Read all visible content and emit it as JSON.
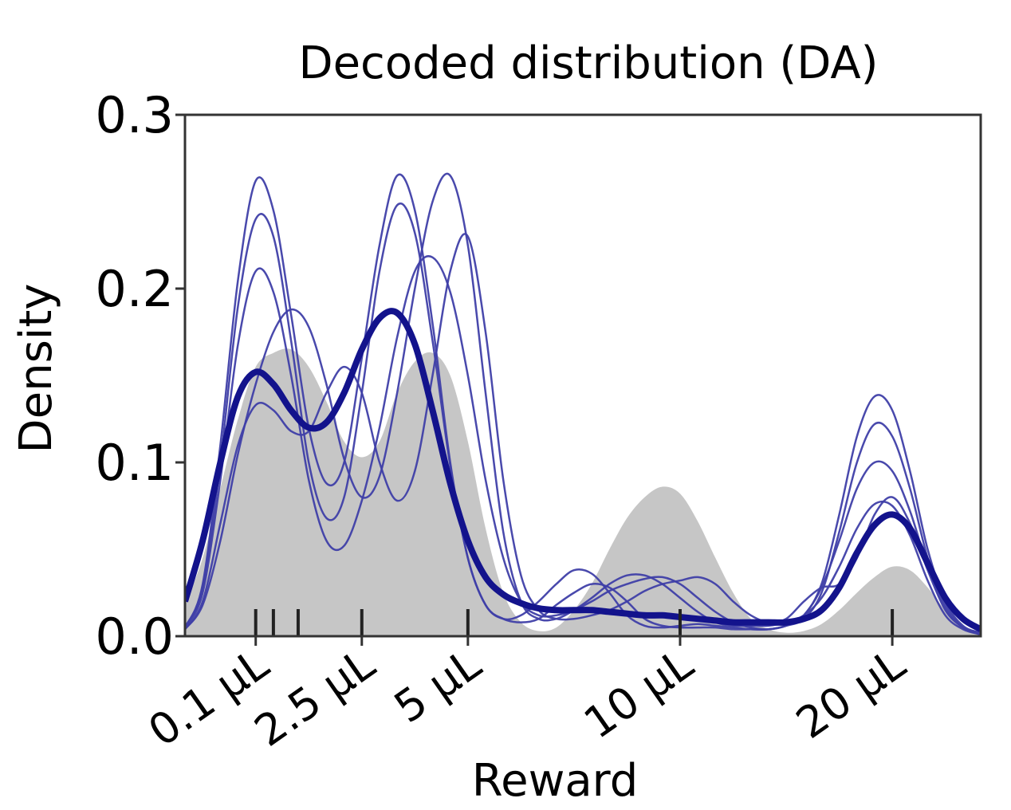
{
  "chart_data": {
    "type": "area",
    "title": "Decoded distribution (DA)",
    "xlabel": "Reward",
    "ylabel": "Density",
    "xlim": [
      -0.5,
      22.0
    ],
    "ylim": [
      0.0,
      0.3
    ],
    "yticks": [
      0.0,
      0.1,
      0.2,
      0.3
    ],
    "ytick_labels": [
      "0.0",
      "0.1",
      "0.2",
      "0.3"
    ],
    "xticks": [
      1.5,
      4.5,
      7.5,
      13.5,
      19.5
    ],
    "xtick_labels": [
      "0.1 μL",
      "2.5 μL",
      "5 μL",
      "10 μL",
      "20 μL"
    ],
    "reward_rug_x": [
      1.5,
      2.0,
      2.7,
      4.5,
      7.5,
      13.5,
      19.5
    ],
    "grid": false,
    "colors": {
      "ground_truth_fill": "#c6c6c6",
      "sample_lines": "#3f3fa8",
      "mean_line": "#13138c",
      "axes": "#333333",
      "rug": "#222222"
    },
    "ground_truth_area": {
      "x": [
        -0.5,
        0.0,
        0.5,
        1.0,
        1.5,
        2.0,
        2.5,
        3.0,
        3.5,
        4.0,
        4.5,
        5.0,
        5.5,
        6.0,
        6.5,
        7.0,
        7.5,
        8.0,
        8.5,
        9.0,
        9.5,
        10.0,
        10.5,
        11.0,
        11.5,
        12.0,
        12.5,
        13.0,
        13.5,
        14.0,
        14.5,
        15.0,
        15.5,
        16.0,
        16.5,
        17.0,
        17.5,
        18.0,
        18.5,
        19.0,
        19.5,
        20.0,
        20.5,
        21.0,
        21.5,
        22.0
      ],
      "y": [
        0.018,
        0.045,
        0.085,
        0.125,
        0.155,
        0.163,
        0.165,
        0.155,
        0.135,
        0.112,
        0.103,
        0.112,
        0.14,
        0.158,
        0.163,
        0.15,
        0.112,
        0.062,
        0.025,
        0.008,
        0.003,
        0.005,
        0.015,
        0.03,
        0.05,
        0.068,
        0.08,
        0.086,
        0.082,
        0.066,
        0.045,
        0.025,
        0.01,
        0.004,
        0.002,
        0.003,
        0.007,
        0.015,
        0.025,
        0.034,
        0.04,
        0.038,
        0.028,
        0.015,
        0.006,
        0.002
      ]
    },
    "series": [
      {
        "x": [
          -0.5,
          0.0,
          0.5,
          1.0,
          1.5,
          2.0,
          2.5,
          3.0,
          3.5,
          4.0,
          4.5,
          5.0,
          5.5,
          6.0,
          6.5,
          7.0,
          7.5,
          8.0,
          8.5,
          9.0,
          9.5,
          10.0,
          10.5,
          11.0,
          11.5,
          12.0,
          12.5,
          13.0,
          13.5,
          14.0,
          14.5,
          15.0,
          15.5,
          16.0,
          16.5,
          17.0,
          17.5,
          18.0,
          18.5,
          19.0,
          19.5,
          20.0,
          20.5,
          21.0,
          21.5,
          22.0
        ],
        "y": [
          0.005,
          0.03,
          0.11,
          0.205,
          0.262,
          0.245,
          0.185,
          0.12,
          0.088,
          0.1,
          0.16,
          0.225,
          0.265,
          0.245,
          0.18,
          0.1,
          0.045,
          0.018,
          0.01,
          0.012,
          0.02,
          0.03,
          0.038,
          0.036,
          0.025,
          0.012,
          0.006,
          0.005,
          0.006,
          0.007,
          0.006,
          0.005,
          0.004,
          0.004,
          0.006,
          0.012,
          0.03,
          0.07,
          0.115,
          0.138,
          0.13,
          0.095,
          0.05,
          0.02,
          0.006,
          0.002
        ]
      },
      {
        "x": [
          -0.5,
          0.0,
          0.5,
          1.0,
          1.5,
          2.0,
          2.5,
          3.0,
          3.5,
          4.0,
          4.5,
          5.0,
          5.5,
          6.0,
          6.5,
          7.0,
          7.5,
          8.0,
          8.5,
          9.0,
          9.5,
          10.0,
          10.5,
          11.0,
          11.5,
          12.0,
          12.5,
          13.0,
          13.5,
          14.0,
          14.5,
          15.0,
          15.5,
          16.0,
          16.5,
          17.0,
          17.5,
          18.0,
          18.5,
          19.0,
          19.5,
          20.0,
          20.5,
          21.0,
          21.5,
          22.0
        ],
        "y": [
          0.005,
          0.028,
          0.1,
          0.19,
          0.24,
          0.23,
          0.17,
          0.1,
          0.068,
          0.08,
          0.14,
          0.21,
          0.248,
          0.232,
          0.17,
          0.098,
          0.045,
          0.018,
          0.01,
          0.008,
          0.01,
          0.018,
          0.025,
          0.03,
          0.028,
          0.02,
          0.01,
          0.006,
          0.005,
          0.005,
          0.005,
          0.004,
          0.004,
          0.004,
          0.006,
          0.01,
          0.025,
          0.06,
          0.1,
          0.122,
          0.115,
          0.085,
          0.045,
          0.018,
          0.005,
          0.002
        ]
      },
      {
        "x": [
          -0.5,
          0.0,
          0.5,
          1.0,
          1.5,
          2.0,
          2.5,
          3.0,
          3.5,
          4.0,
          4.5,
          5.0,
          5.5,
          6.0,
          6.5,
          7.0,
          7.5,
          8.0,
          8.5,
          9.0,
          9.5,
          10.0,
          10.5,
          11.0,
          11.5,
          12.0,
          12.5,
          13.0,
          13.5,
          14.0,
          14.5,
          15.0,
          15.5,
          16.0,
          16.5,
          17.0,
          17.5,
          18.0,
          18.5,
          19.0,
          19.5,
          20.0,
          20.5,
          21.0,
          21.5,
          22.0
        ],
        "y": [
          0.005,
          0.025,
          0.09,
          0.168,
          0.21,
          0.198,
          0.15,
          0.09,
          0.055,
          0.052,
          0.078,
          0.12,
          0.172,
          0.21,
          0.218,
          0.198,
          0.15,
          0.09,
          0.045,
          0.02,
          0.012,
          0.012,
          0.015,
          0.02,
          0.026,
          0.03,
          0.033,
          0.034,
          0.03,
          0.022,
          0.014,
          0.008,
          0.005,
          0.004,
          0.006,
          0.012,
          0.028,
          0.055,
          0.085,
          0.1,
          0.095,
          0.072,
          0.04,
          0.016,
          0.005,
          0.002
        ]
      },
      {
        "x": [
          -0.5,
          0.0,
          0.5,
          1.0,
          1.5,
          2.0,
          2.5,
          3.0,
          3.5,
          4.0,
          4.5,
          5.0,
          5.5,
          6.0,
          6.5,
          7.0,
          7.5,
          8.0,
          8.5,
          9.0,
          9.5,
          10.0,
          10.5,
          11.0,
          11.5,
          12.0,
          12.5,
          13.0,
          13.5,
          14.0,
          14.5,
          15.0,
          15.5,
          16.0,
          16.5,
          17.0,
          17.5,
          18.0,
          18.5,
          19.0,
          19.5,
          20.0,
          20.5,
          21.0,
          21.5,
          22.0
        ],
        "y": [
          0.004,
          0.018,
          0.055,
          0.105,
          0.145,
          0.175,
          0.188,
          0.178,
          0.145,
          0.102,
          0.08,
          0.092,
          0.14,
          0.2,
          0.25,
          0.265,
          0.225,
          0.14,
          0.06,
          0.02,
          0.01,
          0.01,
          0.015,
          0.022,
          0.03,
          0.035,
          0.035,
          0.03,
          0.022,
          0.014,
          0.008,
          0.006,
          0.006,
          0.006,
          0.008,
          0.012,
          0.022,
          0.04,
          0.062,
          0.076,
          0.075,
          0.058,
          0.032,
          0.012,
          0.004,
          0.001
        ]
      },
      {
        "x": [
          -0.5,
          0.0,
          0.5,
          1.0,
          1.5,
          2.0,
          2.5,
          3.0,
          3.5,
          4.0,
          4.5,
          5.0,
          5.5,
          6.0,
          6.5,
          7.0,
          7.5,
          8.0,
          8.5,
          9.0,
          9.5,
          10.0,
          10.5,
          11.0,
          11.5,
          12.0,
          12.5,
          13.0,
          13.5,
          14.0,
          14.5,
          15.0,
          15.5,
          16.0,
          16.5,
          17.0,
          17.5,
          18.0,
          18.5,
          19.0,
          19.5,
          20.0,
          20.5,
          21.0,
          21.5,
          22.0
        ],
        "y": [
          0.004,
          0.02,
          0.065,
          0.11,
          0.133,
          0.13,
          0.118,
          0.118,
          0.14,
          0.155,
          0.14,
          0.1,
          0.078,
          0.095,
          0.15,
          0.21,
          0.23,
          0.175,
          0.09,
          0.035,
          0.015,
          0.01,
          0.01,
          0.012,
          0.015,
          0.02,
          0.026,
          0.03,
          0.032,
          0.034,
          0.03,
          0.02,
          0.012,
          0.008,
          0.01,
          0.02,
          0.028,
          0.03,
          0.045,
          0.07,
          0.08,
          0.065,
          0.038,
          0.015,
          0.005,
          0.001
        ]
      },
      {
        "x": [
          -0.5,
          0.0,
          0.5,
          1.0,
          1.5,
          2.0,
          2.5,
          3.0,
          3.5,
          4.0,
          4.5,
          5.0,
          5.5,
          6.0,
          6.5,
          7.0,
          7.5,
          8.0,
          8.5,
          9.0,
          9.5,
          10.0,
          10.5,
          11.0,
          11.5,
          12.0,
          12.5,
          13.0,
          13.5,
          14.0,
          14.5,
          15.0,
          15.5,
          16.0,
          16.5,
          17.0,
          17.5,
          18.0,
          18.5,
          19.0,
          19.5,
          20.0,
          20.5,
          21.0,
          21.5,
          22.0
        ],
        "y": [
          0.02,
          0.055,
          0.1,
          0.138,
          0.152,
          0.145,
          0.13,
          0.12,
          0.123,
          0.14,
          0.165,
          0.183,
          0.186,
          0.168,
          0.13,
          0.088,
          0.055,
          0.034,
          0.024,
          0.019,
          0.016,
          0.015,
          0.015,
          0.015,
          0.014,
          0.013,
          0.012,
          0.012,
          0.011,
          0.01,
          0.009,
          0.008,
          0.008,
          0.008,
          0.008,
          0.01,
          0.015,
          0.028,
          0.048,
          0.064,
          0.07,
          0.062,
          0.042,
          0.022,
          0.01,
          0.004
        ]
      }
    ]
  }
}
